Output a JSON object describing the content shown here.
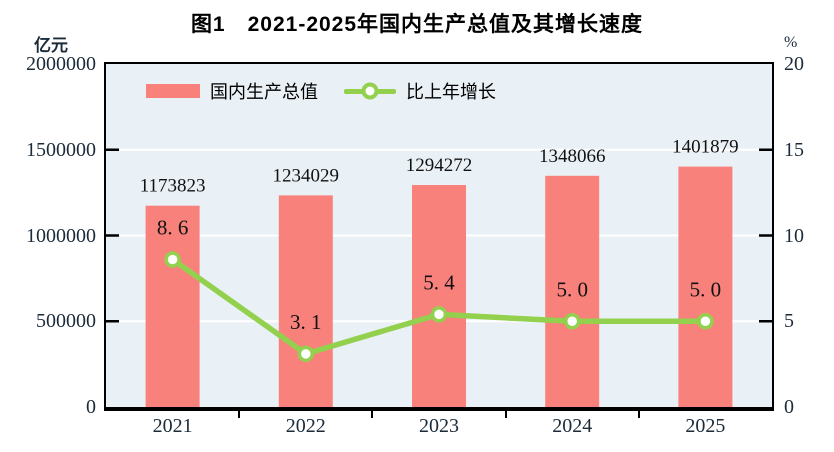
{
  "title": "图1　2021-2025年国内生产总值及其增长速度",
  "legend": {
    "bar_label": "国内生产总值",
    "line_label": "比上年增长"
  },
  "colors": {
    "bar": "#F8817B",
    "line": "#92D04E",
    "plot_bg": "#EAF1F6",
    "grid": "#FFFFFF",
    "axis": "#000000",
    "tick_text": "#1C2B3A",
    "value_text": "#111111"
  },
  "chart_data": {
    "type": "bar",
    "subtype": "bar-line-combo-dual-axis",
    "title": "图1　2021-2025年国内生产总值及其增长速度",
    "categories": [
      "2021",
      "2022",
      "2023",
      "2024",
      "2025"
    ],
    "series": [
      {
        "name": "国内生产总值",
        "type": "bar",
        "axis": "left",
        "unit": "亿元",
        "values": [
          1173823,
          1234029,
          1294272,
          1348066,
          1401879
        ],
        "labels": [
          "1173823",
          "1234029",
          "1294272",
          "1348066",
          "1401879"
        ]
      },
      {
        "name": "比上年增长",
        "type": "line",
        "axis": "right",
        "unit": "%",
        "values": [
          8.6,
          3.1,
          5.4,
          5.0,
          5.0
        ],
        "labels": [
          "8. 6",
          "3. 1",
          "5. 4",
          "5. 0",
          "5. 0"
        ]
      }
    ],
    "left_axis": {
      "unit": "亿元",
      "min": 0,
      "max": 2000000,
      "ticks": [
        0,
        500000,
        1000000,
        1500000,
        2000000
      ],
      "tick_labels": [
        "0",
        "500000",
        "1000000",
        "1500000",
        "2000000"
      ]
    },
    "right_axis": {
      "unit": "%",
      "min": 0,
      "max": 20,
      "ticks": [
        0,
        5,
        10,
        15,
        20
      ],
      "tick_labels": [
        "0",
        "5",
        "10",
        "15",
        "20"
      ]
    },
    "grid": true,
    "legend_position": "inside-top-left"
  }
}
